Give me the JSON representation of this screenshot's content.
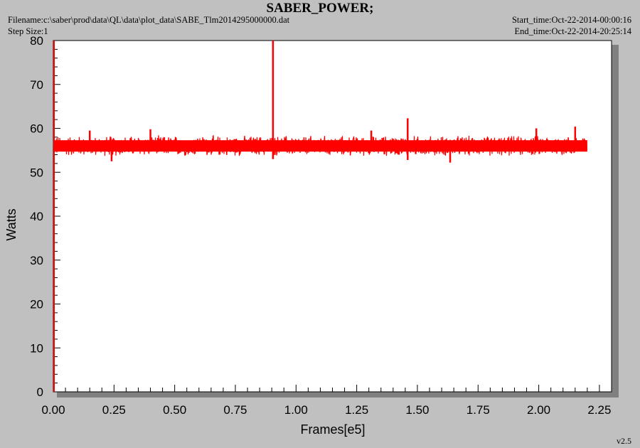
{
  "header": {
    "title": "SABER_POWER;",
    "filename": "Filename:c:\\saber\\prod\\data\\QL\\data\\plot_data\\SABE_Tlm2014295000000.dat",
    "step_size": "Step Size:1",
    "start_time": "Start_time:Oct-22-2014-00:00:16",
    "end_time": "End_time:Oct-22-2014-20:25:14"
  },
  "footer": {
    "version": "v2.5"
  },
  "chart_data": {
    "type": "line",
    "title": "SABER_POWER;",
    "xlabel": "Frames[e5]",
    "ylabel": "Watts",
    "xlim": [
      0,
      2.3
    ],
    "ylim": [
      0,
      80
    ],
    "x_ticks": [
      "0.00",
      "0.25",
      "0.50",
      "0.75",
      "1.00",
      "1.25",
      "1.50",
      "1.75",
      "2.00",
      "2.25"
    ],
    "y_ticks": [
      "0",
      "10",
      "20",
      "30",
      "40",
      "50",
      "60",
      "70",
      "80"
    ],
    "grid": false,
    "colors": {
      "series": "#ff0000",
      "background": "#c0c0c0",
      "plot": "#ffffff"
    },
    "series": [
      {
        "x_range": [
          0.0,
          2.2
        ],
        "baseline": 56,
        "band": [
          53.5,
          58.5
        ],
        "spikes": [
          {
            "x": 0.905,
            "y": 80
          },
          {
            "x": 0.905,
            "y": 53
          },
          {
            "x": 1.46,
            "y": 62.3
          },
          {
            "x": 1.46,
            "y": 52.8
          },
          {
            "x": 1.635,
            "y": 52.2
          },
          {
            "x": 0.24,
            "y": 52.5
          },
          {
            "x": 0.4,
            "y": 59.8
          },
          {
            "x": 2.15,
            "y": 60.4
          },
          {
            "x": 1.99,
            "y": 60.0
          },
          {
            "x": 1.31,
            "y": 59.5
          },
          {
            "x": 0.15,
            "y": 59.5
          }
        ]
      }
    ]
  }
}
